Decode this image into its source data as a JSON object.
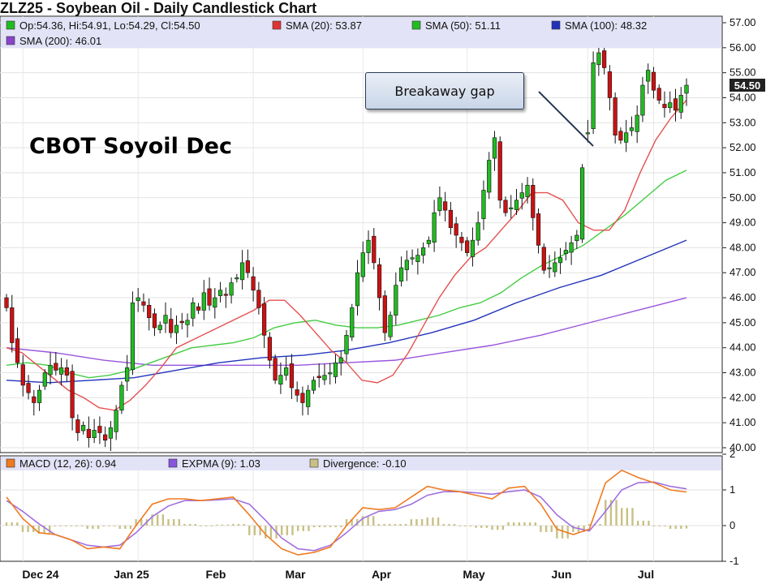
{
  "title": "ZLZ25 - Soybean Oil - Daily Candlestick Chart",
  "overlay_title": "CBOT Soyoil Dec",
  "annotation": "Breakaway gap",
  "last_price_tag": "54.50",
  "colors": {
    "up": "#22bb22",
    "down": "#cc1111",
    "sma20": "#e55050",
    "sma50": "#44cc44",
    "sma100": "#2233bb",
    "sma200": "#9955dd",
    "macd": "#f07a20",
    "expma": "#a070e0",
    "divergence": "#c8c084",
    "legend_bg": "#e3e3f7"
  },
  "chart_data": [
    {
      "type": "candlestick",
      "title": "ZLZ25 - Soybean Oil - Daily Candlestick Chart",
      "ylim": [
        40,
        57
      ],
      "yticks": [
        "57.00",
        "56.00",
        "55.00",
        "54.00",
        "53.00",
        "52.00",
        "51.00",
        "50.00",
        "49.00",
        "48.00",
        "47.00",
        "46.00",
        "45.00",
        "44.00",
        "43.00",
        "42.00",
        "41.00",
        "40.00"
      ],
      "x_month_labels": [
        "Dec 24",
        "Jan 25",
        "Feb",
        "Mar",
        "Apr",
        "May",
        "Jun",
        "Jul"
      ],
      "legend": [
        {
          "label": "Op:54.36, Hi:54.91, Lo:54.29, Cl:54.50",
          "color": "#22bb22"
        },
        {
          "label": "SMA (20): 53.87",
          "color": "#dd3333"
        },
        {
          "label": "SMA (50): 51.11",
          "color": "#22bb22"
        },
        {
          "label": "SMA (100): 48.32",
          "color": "#2233bb"
        },
        {
          "label": "SMA (200): 46.01",
          "color": "#8844cc"
        }
      ],
      "closes": [
        45.6,
        44.2,
        43.4,
        42.5,
        42.2,
        41.8,
        42.3,
        43.0,
        43.3,
        43.1,
        43.2,
        42.9,
        41.2,
        40.6,
        40.9,
        40.4,
        40.7,
        40.6,
        40.3,
        40.8,
        41.5,
        42.5,
        43.2,
        45.8,
        46.0,
        45.7,
        45.2,
        44.8,
        44.9,
        45.3,
        44.6,
        44.9,
        45.0,
        45.1,
        45.8,
        45.5,
        46.2,
        45.7,
        46.0,
        46.3,
        46.1,
        46.6,
        46.8,
        47.4,
        47.0,
        46.3,
        45.6,
        44.5,
        43.5,
        42.7,
        42.9,
        43.2,
        42.4,
        42.1,
        41.8,
        42.3,
        42.7,
        42.8,
        42.9,
        43.0,
        43.4,
        43.6,
        44.5,
        45.6,
        47.0,
        47.8,
        48.3,
        47.4,
        46.0,
        44.6,
        45.3,
        46.5,
        47.2,
        47.5,
        47.6,
        47.7,
        48.0,
        48.3,
        49.4,
        50.0,
        49.5,
        48.8,
        48.5,
        48.2,
        47.8,
        48.3,
        49.0,
        50.3,
        51.5,
        52.4,
        49.9,
        49.4,
        49.6,
        49.9,
        50.2,
        50.5,
        49.2,
        48.1,
        47.1,
        47.2,
        47.4,
        47.6,
        47.9,
        48.2,
        48.5,
        51.2,
        52.6,
        55.4,
        55.8,
        55.2,
        54.0,
        52.5,
        52.3,
        52.6,
        52.8,
        53.3,
        54.5,
        55.1,
        54.3,
        53.9,
        53.6,
        53.8,
        53.5,
        54.1,
        54.5
      ],
      "gap": {
        "from_index": 105,
        "to_index": 106
      },
      "sma20": [
        44.0,
        43.8,
        43.3,
        42.8,
        42.3,
        42.0,
        41.6,
        41.5,
        41.9,
        42.5,
        43.2,
        44.0,
        44.3,
        44.6,
        44.9,
        45.2,
        45.5,
        45.9,
        45.9,
        45.3,
        44.6,
        43.9,
        43.4,
        42.7,
        42.6,
        42.9,
        43.8,
        44.9,
        46.0,
        46.9,
        47.6,
        48.0,
        48.7,
        49.4,
        50.2,
        50.2,
        49.9,
        49.0,
        48.7,
        48.7,
        49.5,
        51.0,
        52.3,
        53.2,
        53.9
      ],
      "sma50": [
        43.3,
        43.4,
        43.3,
        43.0,
        42.8,
        42.9,
        43.1,
        43.4,
        43.7,
        44.0,
        44.1,
        44.2,
        44.4,
        44.8,
        45.0,
        45.1,
        44.9,
        44.8,
        44.8,
        44.9,
        45.1,
        45.3,
        45.6,
        45.8,
        46.2,
        46.8,
        47.3,
        47.7,
        48.1,
        48.7,
        49.3,
        50.0,
        50.7,
        51.1
      ],
      "sma100": [
        42.7,
        42.6,
        42.7,
        42.8,
        43.1,
        43.4,
        43.6,
        43.7,
        43.9,
        44.2,
        44.6,
        45.1,
        45.8,
        46.4,
        46.9,
        47.6,
        48.3
      ],
      "sma200": [
        44.0,
        43.8,
        43.5,
        43.3,
        43.3,
        43.3,
        43.3,
        43.4,
        43.5,
        43.8,
        44.1,
        44.5,
        45.0,
        45.5,
        46.0
      ]
    },
    {
      "type": "line",
      "title": "MACD",
      "ylim": [
        -1,
        2
      ],
      "yticks": [
        "2",
        "1",
        "0",
        "-1"
      ],
      "legend": [
        {
          "label": "MACD (12, 26): 0.94",
          "color": "#f07a20"
        },
        {
          "label": "EXPMA (9): 1.03",
          "color": "#8855dd"
        },
        {
          "label": "Divergence: -0.10",
          "color": "#c8c084"
        }
      ],
      "macd": [
        0.8,
        0.2,
        -0.2,
        -0.25,
        -0.4,
        -0.65,
        -0.6,
        -0.65,
        0.0,
        0.6,
        0.75,
        0.75,
        0.7,
        0.75,
        0.8,
        0.3,
        -0.25,
        -0.65,
        -0.82,
        -0.75,
        -0.6,
        0.0,
        0.5,
        0.45,
        0.5,
        0.8,
        1.1,
        1.0,
        0.95,
        0.85,
        0.75,
        1.05,
        1.1,
        0.6,
        -0.1,
        -0.25,
        -0.1,
        1.2,
        1.55,
        1.35,
        1.2,
        1.0,
        0.94
      ],
      "expma": [
        0.7,
        0.4,
        0.05,
        -0.25,
        -0.4,
        -0.55,
        -0.6,
        -0.55,
        -0.2,
        0.25,
        0.55,
        0.7,
        0.7,
        0.72,
        0.75,
        0.6,
        0.15,
        -0.35,
        -0.65,
        -0.7,
        -0.55,
        -0.2,
        0.2,
        0.4,
        0.45,
        0.6,
        0.85,
        0.95,
        0.95,
        0.92,
        0.88,
        0.95,
        1.0,
        0.8,
        0.3,
        -0.05,
        -0.15,
        0.4,
        1.0,
        1.2,
        1.22,
        1.1,
        1.03
      ],
      "divergence_note": "histogram = MACD - EXPMA"
    }
  ]
}
